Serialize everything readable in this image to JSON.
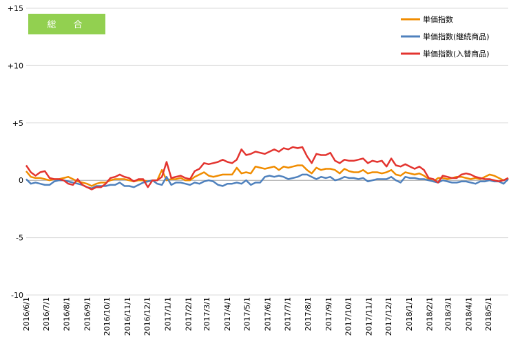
{
  "badge": {
    "label": "総　合",
    "color": "#92d050"
  },
  "chart_data": {
    "type": "line",
    "title": "",
    "xlabel": "",
    "ylabel": "",
    "ylim": [
      -10,
      15
    ],
    "grid": "horizontal",
    "legend_position": "top-right",
    "y_ticks": [
      {
        "value": 15,
        "label": "+15"
      },
      {
        "value": 10,
        "label": "+10"
      },
      {
        "value": 5,
        "label": "+5"
      },
      {
        "value": 0,
        "label": "0"
      },
      {
        "value": -5,
        "label": "-5"
      },
      {
        "value": -10,
        "label": "-10"
      }
    ],
    "x_tick_labels": [
      "2016/6/1",
      "2016/7/1",
      "2016/8/1",
      "2016/9/1",
      "2016/10/1",
      "2016/11/1",
      "2016/12/1",
      "2017/1/1",
      "2017/2/1",
      "2017/3/1",
      "2017/4/1",
      "2017/5/1",
      "2017/6/1",
      "2017/7/1",
      "2017/8/1",
      "2017/9/1",
      "2017/10/1",
      "2017/11/1",
      "2017/12/1",
      "2018/1/1",
      "2018/2/1",
      "2018/3/1",
      "2018/4/1",
      "2018/5/1"
    ],
    "x_start": "2016/6/1",
    "x_end": "2018/5/31",
    "series": [
      {
        "name": "単価指数",
        "color": "#f08c00",
        "values": [
          0.8,
          0.3,
          0.2,
          0.2,
          0.1,
          0.0,
          0.1,
          0.1,
          0.2,
          0.3,
          0.1,
          -0.1,
          -0.2,
          -0.3,
          -0.5,
          -0.3,
          -0.2,
          -0.2,
          0.0,
          0.1,
          0.1,
          0.1,
          0.0,
          -0.1,
          0.0,
          0.0,
          -0.1,
          0.0,
          0.0,
          0.9,
          0.0,
          0.1,
          0.1,
          0.2,
          0.0,
          0.0,
          0.3,
          0.5,
          0.7,
          0.4,
          0.3,
          0.4,
          0.5,
          0.5,
          0.5,
          1.1,
          0.6,
          0.7,
          0.6,
          1.2,
          1.1,
          1.0,
          1.1,
          1.2,
          0.9,
          1.2,
          1.1,
          1.2,
          1.3,
          1.3,
          0.9,
          0.6,
          1.1,
          0.9,
          1.0,
          1.0,
          0.9,
          0.6,
          1.0,
          0.8,
          0.7,
          0.7,
          0.9,
          0.6,
          0.7,
          0.7,
          0.6,
          0.7,
          0.9,
          0.5,
          0.4,
          0.7,
          0.6,
          0.5,
          0.6,
          0.4,
          0.1,
          -0.1,
          0.2,
          0.2,
          0.1,
          0.2,
          0.3,
          0.3,
          0.2,
          0.1,
          0.2,
          0.1,
          0.3,
          0.5,
          0.4,
          0.2,
          0.0,
          0.2
        ]
      },
      {
        "name": "単価指数(継続商品)",
        "color": "#4f81bd",
        "values": [
          0.1,
          -0.3,
          -0.2,
          -0.3,
          -0.4,
          -0.4,
          -0.1,
          0.0,
          0.0,
          -0.1,
          -0.2,
          -0.3,
          -0.4,
          -0.6,
          -0.7,
          -0.5,
          -0.5,
          -0.5,
          -0.4,
          -0.4,
          -0.2,
          -0.5,
          -0.5,
          -0.6,
          -0.4,
          -0.2,
          -0.1,
          0.0,
          -0.3,
          -0.4,
          0.3,
          -0.4,
          -0.2,
          -0.2,
          -0.3,
          -0.4,
          -0.2,
          -0.3,
          -0.1,
          0.0,
          -0.1,
          -0.4,
          -0.5,
          -0.3,
          -0.3,
          -0.2,
          -0.3,
          0.0,
          -0.4,
          -0.2,
          -0.2,
          0.3,
          0.4,
          0.3,
          0.4,
          0.3,
          0.1,
          0.2,
          0.3,
          0.5,
          0.5,
          0.3,
          0.1,
          0.3,
          0.2,
          0.3,
          0.0,
          0.1,
          0.3,
          0.2,
          0.2,
          0.1,
          0.2,
          -0.1,
          0.0,
          0.1,
          0.1,
          0.1,
          0.3,
          0.0,
          -0.2,
          0.3,
          0.2,
          0.2,
          0.1,
          0.1,
          0.0,
          -0.1,
          -0.2,
          0.0,
          -0.1,
          -0.2,
          -0.2,
          -0.1,
          -0.1,
          -0.2,
          -0.3,
          -0.1,
          -0.1,
          0.0,
          -0.1,
          -0.1,
          -0.3,
          0.1
        ]
      },
      {
        "name": "単価指数(入替商品)",
        "color": "#e3342f",
        "values": [
          1.3,
          0.7,
          0.4,
          0.7,
          0.8,
          0.2,
          0.1,
          0.1,
          0.0,
          -0.3,
          -0.4,
          0.1,
          -0.4,
          -0.6,
          -0.8,
          -0.6,
          -0.6,
          -0.3,
          0.2,
          0.3,
          0.5,
          0.3,
          0.2,
          -0.1,
          0.1,
          0.1,
          -0.6,
          0.0,
          0.0,
          0.3,
          1.6,
          0.2,
          0.3,
          0.4,
          0.2,
          0.1,
          0.8,
          1.0,
          1.5,
          1.4,
          1.5,
          1.6,
          1.8,
          1.6,
          1.5,
          1.8,
          2.7,
          2.2,
          2.3,
          2.5,
          2.4,
          2.3,
          2.5,
          2.7,
          2.5,
          2.8,
          2.7,
          2.9,
          2.8,
          2.9,
          2.1,
          1.5,
          2.3,
          2.2,
          2.2,
          2.4,
          1.7,
          1.5,
          1.8,
          1.7,
          1.7,
          1.8,
          1.9,
          1.5,
          1.7,
          1.6,
          1.7,
          1.2,
          1.9,
          1.3,
          1.2,
          1.4,
          1.2,
          1.0,
          1.2,
          0.9,
          0.2,
          0.1,
          -0.2,
          0.4,
          0.3,
          0.2,
          0.2,
          0.5,
          0.6,
          0.5,
          0.3,
          0.2,
          0.1,
          0.1,
          0.0,
          -0.1,
          0.0,
          0.2
        ]
      }
    ]
  }
}
